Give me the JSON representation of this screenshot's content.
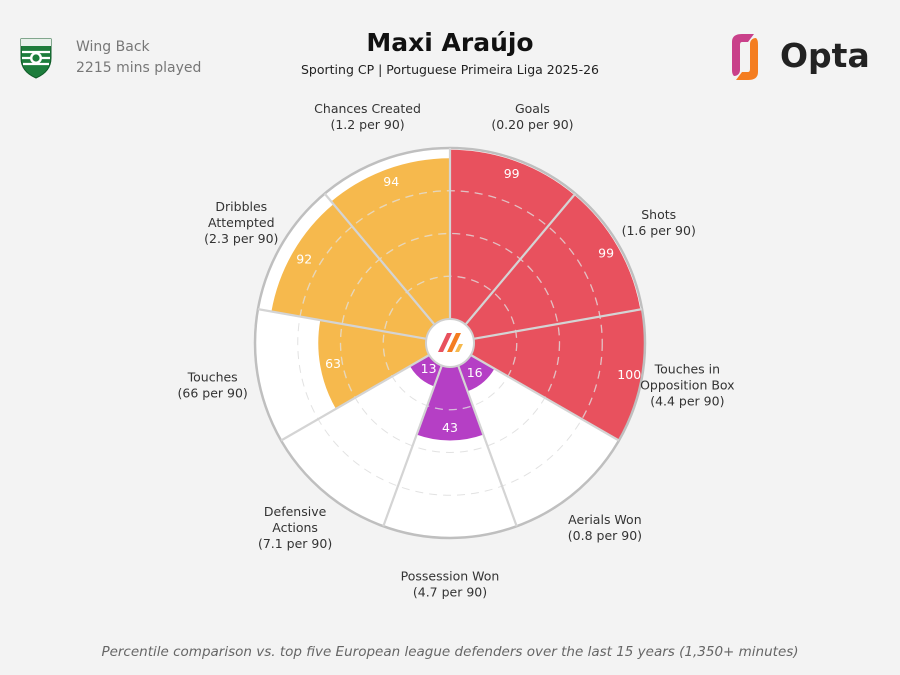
{
  "player": {
    "position": "Wing Back",
    "minutes": "2215 mins played",
    "name": "Maxi Araújo",
    "subtitle": "Sporting CP | Portuguese Primeira Liga 2025-26"
  },
  "brand": {
    "name": "Opta"
  },
  "footnote": "Percentile comparison vs. top five European league defenders over the last 15 years (1,350+ minutes)",
  "colors": {
    "attacking": "#e8515e",
    "possession": "#f6b94d",
    "defending": "#b53fc5",
    "club_green": "#1d7d3c"
  },
  "chart_data": {
    "type": "pie",
    "subtype": "percentile-radar",
    "rlim": [
      0,
      100
    ],
    "categories": [
      {
        "label": "Goals",
        "detail": "(0.20 per 90)",
        "value": 99,
        "group": "attacking"
      },
      {
        "label": "Shots",
        "detail": "(1.6 per 90)",
        "value": 99,
        "group": "attacking"
      },
      {
        "label": "Touches in Opposition Box",
        "detail": "(4.4 per 90)",
        "value": 100,
        "group": "attacking"
      },
      {
        "label": "Aerials Won",
        "detail": "(0.8 per 90)",
        "value": 16,
        "group": "defending"
      },
      {
        "label": "Possession Won",
        "detail": "(4.7 per 90)",
        "value": 43,
        "group": "defending"
      },
      {
        "label": "Defensive Actions",
        "detail": "(7.1 per 90)",
        "value": 13,
        "group": "defending"
      },
      {
        "label": "Touches",
        "detail": "(66 per 90)",
        "value": 63,
        "group": "possession"
      },
      {
        "label": "Dribbles Attempted",
        "detail": "(2.3 per 90)",
        "value": 92,
        "group": "possession"
      },
      {
        "label": "Chances Created",
        "detail": "(1.2 per 90)",
        "value": 94,
        "group": "possession"
      }
    ]
  }
}
